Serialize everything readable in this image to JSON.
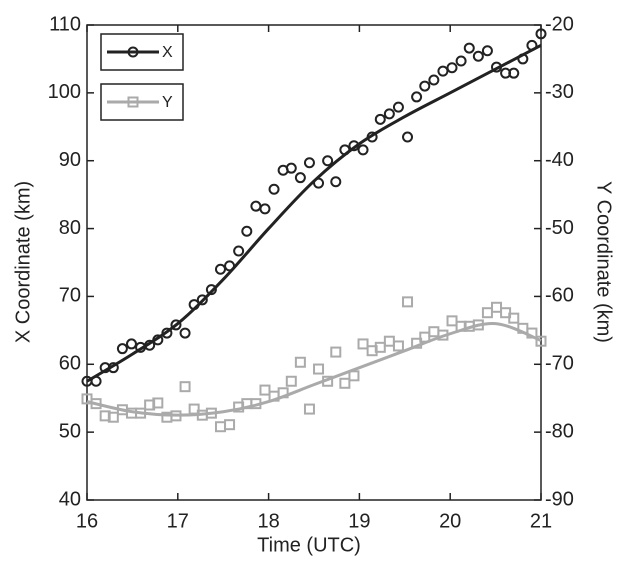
{
  "chart_data": {
    "type": "scatter",
    "xlabel": "Time (UTC)",
    "ylabel": "X Coordinate (km)",
    "y2label": "Y Coordinate (km)",
    "xlim": [
      16,
      21
    ],
    "xticks": [
      16,
      17,
      18,
      19,
      20,
      21
    ],
    "ylim": [
      40,
      110
    ],
    "yticks": [
      40,
      50,
      60,
      70,
      80,
      90,
      100,
      110
    ],
    "y2lim": [
      -90,
      -20
    ],
    "y2ticks": [
      -90,
      -80,
      -70,
      -60,
      -50,
      -40,
      -30,
      -20
    ],
    "legend": "upper left",
    "x": [
      16.0,
      16.1,
      16.2,
      16.29,
      16.39,
      16.49,
      16.59,
      16.69,
      16.78,
      16.88,
      16.98,
      17.08,
      17.18,
      17.27,
      17.37,
      17.47,
      17.57,
      17.67,
      17.76,
      17.86,
      17.96,
      18.06,
      18.16,
      18.25,
      18.35,
      18.45,
      18.55,
      18.65,
      18.74,
      18.84,
      18.94,
      19.04,
      19.14,
      19.23,
      19.33,
      19.43,
      19.53,
      19.63,
      19.72,
      19.82,
      19.92,
      20.02,
      20.12,
      20.21,
      20.31,
      20.41,
      20.51,
      20.61,
      20.7,
      20.8,
      20.9,
      21.0
    ],
    "fit_x": [
      16,
      16.5,
      17,
      17.5,
      18,
      18.5,
      19,
      19.5,
      20,
      20.5,
      21
    ],
    "series": [
      {
        "name": "X",
        "color": "#222222",
        "marker": "circle",
        "values": [
          57.5,
          57.5,
          59.5,
          59.5,
          62.3,
          63,
          62.5,
          62.8,
          63.6,
          64.6,
          65.8,
          64.6,
          68.8,
          69.5,
          71,
          74,
          74.5,
          76.7,
          79.6,
          83.3,
          82.9,
          85.8,
          88.6,
          88.9,
          87.5,
          89.7,
          86.7,
          90,
          86.9,
          91.6,
          92.2,
          91.6,
          93.5,
          96.1,
          96.9,
          97.9,
          93.5,
          99.4,
          101,
          101.9,
          103.2,
          103.7,
          104.7,
          106.6,
          105.4,
          106.2,
          103.8,
          102.9,
          102.9,
          105,
          107,
          108.7
        ],
        "fit": [
          57.5,
          61.5,
          66,
          72.5,
          80,
          87,
          92.5,
          96.5,
          100,
          103.5,
          107
        ]
      },
      {
        "name": "Y",
        "color": "#aaaaaa",
        "marker": "square",
        "axis": "y2",
        "values": [
          -75.1,
          -75.8,
          -77.6,
          -77.8,
          -76.7,
          -77.2,
          -77.2,
          -76,
          -75.7,
          -77.8,
          -77.6,
          -73.3,
          -76.6,
          -77.5,
          -77.2,
          -79.2,
          -78.9,
          -76.3,
          -75.8,
          -75.8,
          -73.8,
          -74.7,
          -74.2,
          -72.5,
          -69.7,
          -76.6,
          -70.7,
          -72.5,
          -68.2,
          -72.8,
          -71.7,
          -67,
          -68,
          -67.5,
          -66.6,
          -67.3,
          -60.8,
          -66.9,
          -66,
          -65.2,
          -65.7,
          -63.6,
          -64.4,
          -64.4,
          -64.2,
          -62.4,
          -61.6,
          -62.4,
          -63.2,
          -64.7,
          -65.4,
          -66.6
        ],
        "fit": [
          -75.5,
          -77,
          -77.5,
          -77,
          -75.5,
          -73,
          -70.5,
          -68,
          -65.5,
          -64,
          -66.5
        ]
      }
    ]
  }
}
